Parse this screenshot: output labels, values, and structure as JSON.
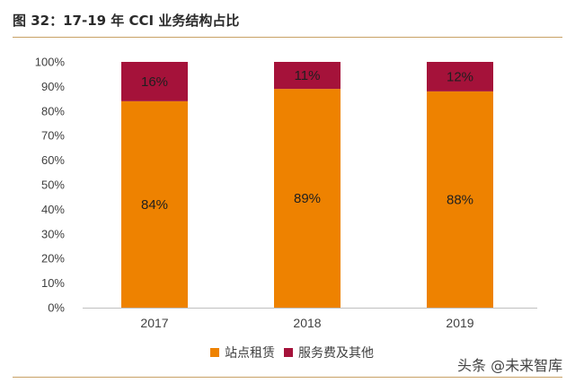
{
  "header": {
    "title": "图 32：17-19 年 CCI 业务结构占比"
  },
  "watermark": "头条 @未来智库",
  "colors": {
    "primary": "#ee8200",
    "secondary": "#a5123a",
    "rule": "#c8a165"
  },
  "chart_data": {
    "type": "bar",
    "stacked": true,
    "percent": true,
    "categories": [
      "2017",
      "2018",
      "2019"
    ],
    "series": [
      {
        "name": "站点租赁",
        "values": [
          84,
          89,
          88
        ],
        "labels": [
          "84%",
          "89%",
          "88%"
        ]
      },
      {
        "name": "服务费及其他",
        "values": [
          16,
          11,
          12
        ],
        "labels": [
          "16%",
          "11%",
          "12%"
        ]
      }
    ],
    "yticks": [
      "0%",
      "10%",
      "20%",
      "30%",
      "40%",
      "50%",
      "60%",
      "70%",
      "80%",
      "90%",
      "100%"
    ],
    "ylim": [
      0,
      100
    ],
    "legend": "bottom",
    "grid": false
  }
}
